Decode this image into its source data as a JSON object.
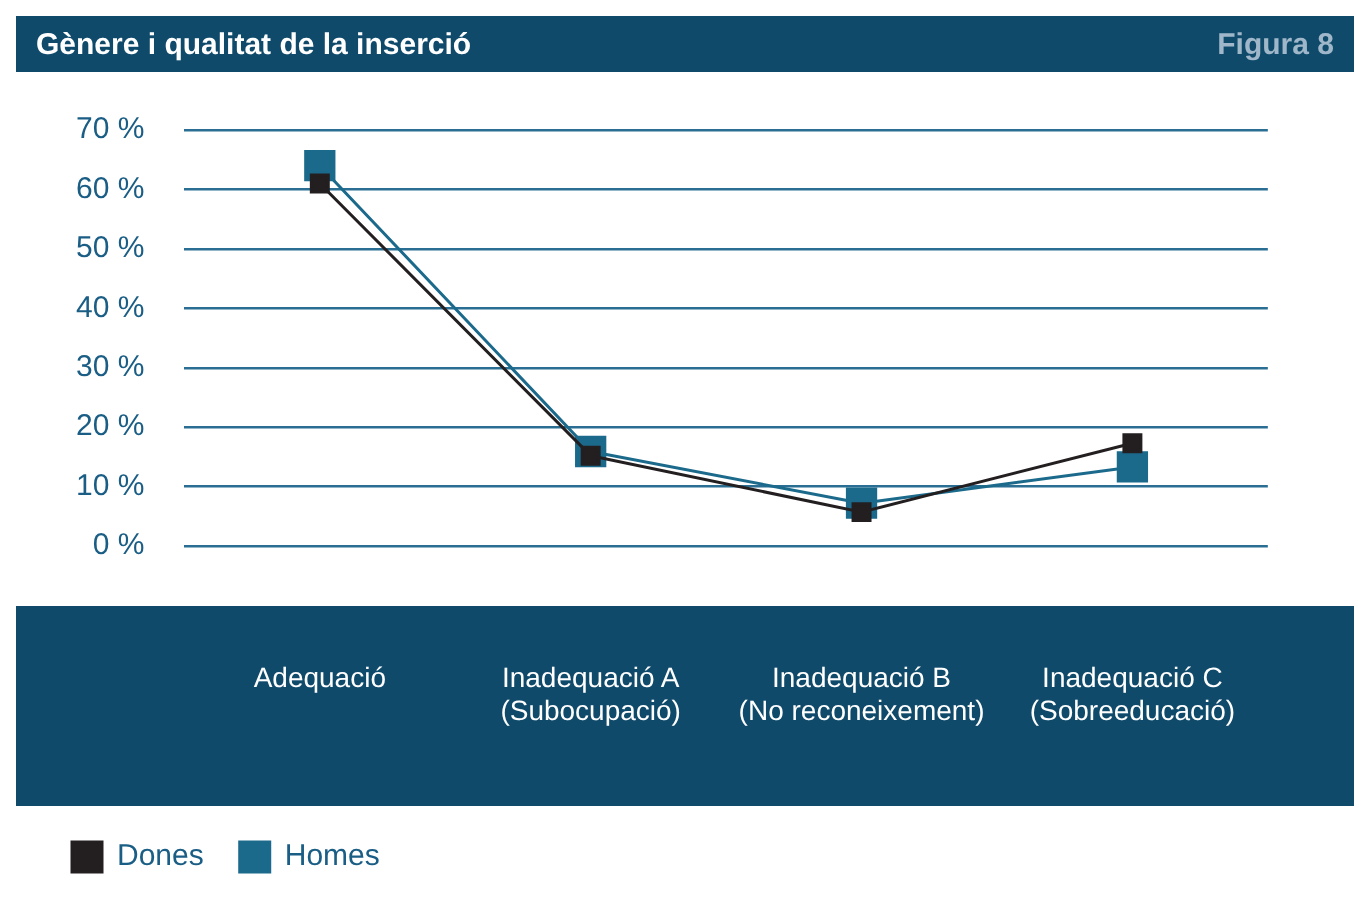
{
  "chart_data": {
    "type": "line",
    "title": "Gènere i qualitat de la inserció",
    "annotations": [
      "Figura 8"
    ],
    "categories": [
      "Adequació",
      "Inadequació A (Subocupació)",
      "Inadequació B (No reconeixement)",
      "Inadequació C (Sobreeducació)"
    ],
    "series": [
      {
        "name": "Dones",
        "color": "#231f20",
        "values": [
          61,
          15.2,
          5.7,
          17.3
        ]
      },
      {
        "name": "Homes",
        "color": "#1b6a8c",
        "values": [
          64,
          15.9,
          7.2,
          13.3
        ]
      }
    ],
    "ylim": [
      0,
      70
    ],
    "yticks": [
      {
        "value": 0,
        "label": "0 %"
      },
      {
        "value": 10,
        "label": "10 %"
      },
      {
        "value": 20,
        "label": "20 %"
      },
      {
        "value": 30,
        "label": "30 %"
      },
      {
        "value": 40,
        "label": "40 %"
      },
      {
        "value": 50,
        "label": "50 %"
      },
      {
        "value": 60,
        "label": "60 %"
      },
      {
        "value": 70,
        "label": "70 %"
      }
    ],
    "grid": "y",
    "legend": "bottom left",
    "marker": "square",
    "line_style": "solid"
  }
}
